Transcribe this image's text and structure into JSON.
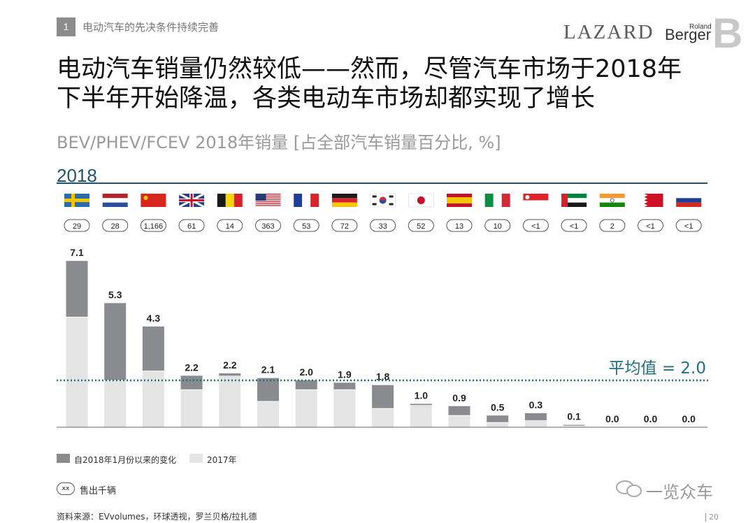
{
  "header": {
    "section_number": "1",
    "section_title": "电动汽车的先决条件持续完善",
    "logo_lazard": "LAZARD",
    "logo_rb_small": "Roland",
    "logo_rb_big": "Berger",
    "logo_b": "B"
  },
  "title_line1": "电动汽车销量仍然较低——然而，尽管汽车市场于2018年",
  "title_line2": "下半年开始降温，各类电动车市场却都实现了增长",
  "subtitle": "BEV/PHEV/FCEV 2018年销量 [占全部汽车销量百分比, %]",
  "year": "2018",
  "average_label": "平均值 = 2.0",
  "legend": {
    "change": "自2018年1月份以来的变化",
    "base": "2017年"
  },
  "units_pill": "xx",
  "units_text": "售出千辆",
  "source": "资料来源：EVvolumes，环球透视，罗兰贝格/拉扎德",
  "watermark": "一览众车",
  "page_number": "20",
  "colors": {
    "dark": "#8a8b8e",
    "light": "#e4e4e5",
    "avg": "#1f7080",
    "rule": "#1f5570"
  },
  "chart_data": {
    "type": "bar",
    "title": "BEV/PHEV/FCEV 2018年销量 [占全部汽车销量百分比, %]",
    "categories": [
      "sweden",
      "netherlands",
      "china",
      "uk",
      "belgium",
      "usa",
      "france",
      "germany",
      "south-korea",
      "japan",
      "spain",
      "italy",
      "singapore",
      "uae",
      "india",
      "bahrain",
      "russia"
    ],
    "totals": [
      7.1,
      5.3,
      4.3,
      2.2,
      2.2,
      2.1,
      2.0,
      1.9,
      1.8,
      1.0,
      0.9,
      0.5,
      0.3,
      0.1,
      0.0,
      0.0,
      0.0
    ],
    "total_labels": [
      "7.1",
      "5.3",
      "4.3",
      "2.2",
      "2.2",
      "2.1",
      "2.0",
      "1.9",
      "1.8",
      "1.0",
      "0.9",
      "0.5",
      "0.3",
      "0.1",
      "0.0",
      "0.0",
      "0.0"
    ],
    "series": [
      {
        "name": "2017年",
        "values": [
          4.7,
          2.0,
          2.4,
          1.6,
          2.3,
          1.1,
          1.6,
          1.6,
          0.8,
          1.0,
          0.5,
          0.2,
          0.6,
          0.05,
          0.0,
          0.0,
          0.0
        ]
      },
      {
        "name": "自2018年1月份以来的变化",
        "values": [
          2.4,
          3.3,
          1.9,
          0.6,
          -0.1,
          1.0,
          0.4,
          0.3,
          1.0,
          -0.05,
          0.4,
          0.3,
          -0.3,
          0.05,
          0.0,
          0.0,
          0.0
        ]
      }
    ],
    "sales_thousand_units": [
      "29",
      "28",
      "1,166",
      "61",
      "14",
      "363",
      "53",
      "72",
      "33",
      "52",
      "13",
      "10",
      "<1",
      "<1",
      "2",
      "<1",
      "<1"
    ],
    "average": 2.0,
    "legend_position": "bottom-left",
    "grid": false
  }
}
